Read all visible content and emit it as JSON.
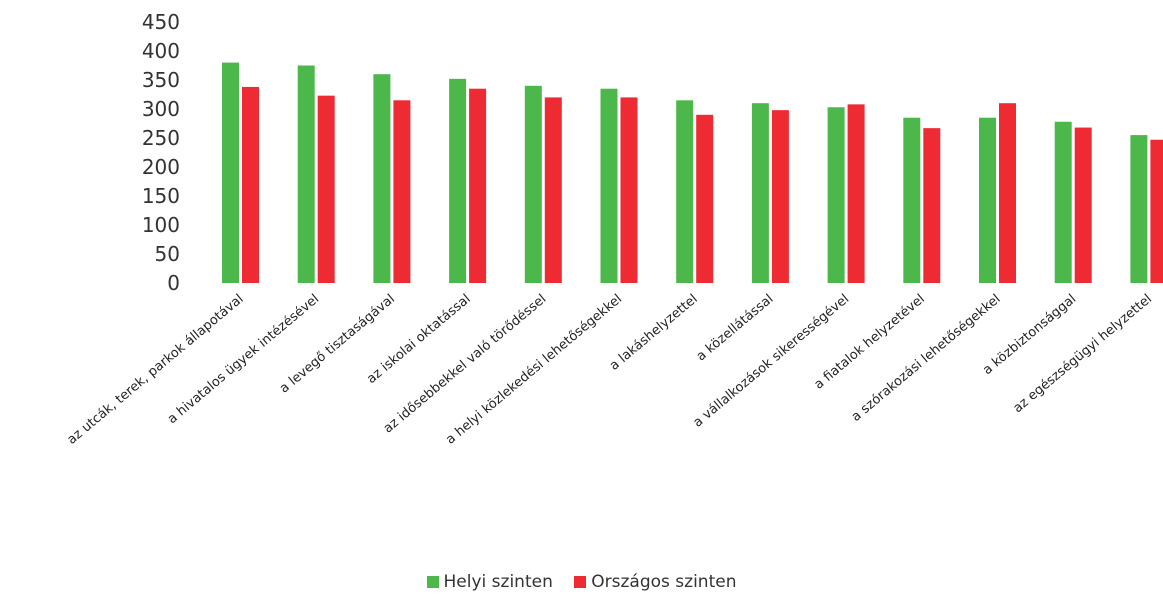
{
  "chart_data": {
    "type": "bar",
    "categories": [
      "az utcák, terek, parkok állapotával",
      "a hivatalos ügyek intézésével",
      "a levegő tisztaságával",
      "az iskolai oktatással",
      "az idősebbekkel való törődéssel",
      "a helyi közlekedési lehetőségekkel",
      "a lakáshelyzettel",
      "a közellátással",
      "a vállalkozások sikerességével",
      "a fiatalok helyzetével",
      "a szórakozási lehetőségekkel",
      "a közbiztonsággal",
      "az egészségügyi helyzettel"
    ],
    "series": [
      {
        "name": "Helyi szinten",
        "color": "#4cb84c",
        "values": [
          380,
          375,
          360,
          352,
          340,
          335,
          315,
          310,
          303,
          285,
          285,
          278,
          255
        ]
      },
      {
        "name": "Országos szinten",
        "color": "#ee2a33",
        "values": [
          338,
          323,
          315,
          335,
          320,
          320,
          290,
          298,
          308,
          267,
          310,
          268,
          247
        ]
      }
    ],
    "yticks": [
      "450",
      "400",
      "350",
      "300",
      "250",
      "200",
      "150",
      "100",
      "50",
      "0"
    ],
    "ylim": [
      0,
      450
    ],
    "grid": false,
    "legend_position": "bottom-center"
  }
}
